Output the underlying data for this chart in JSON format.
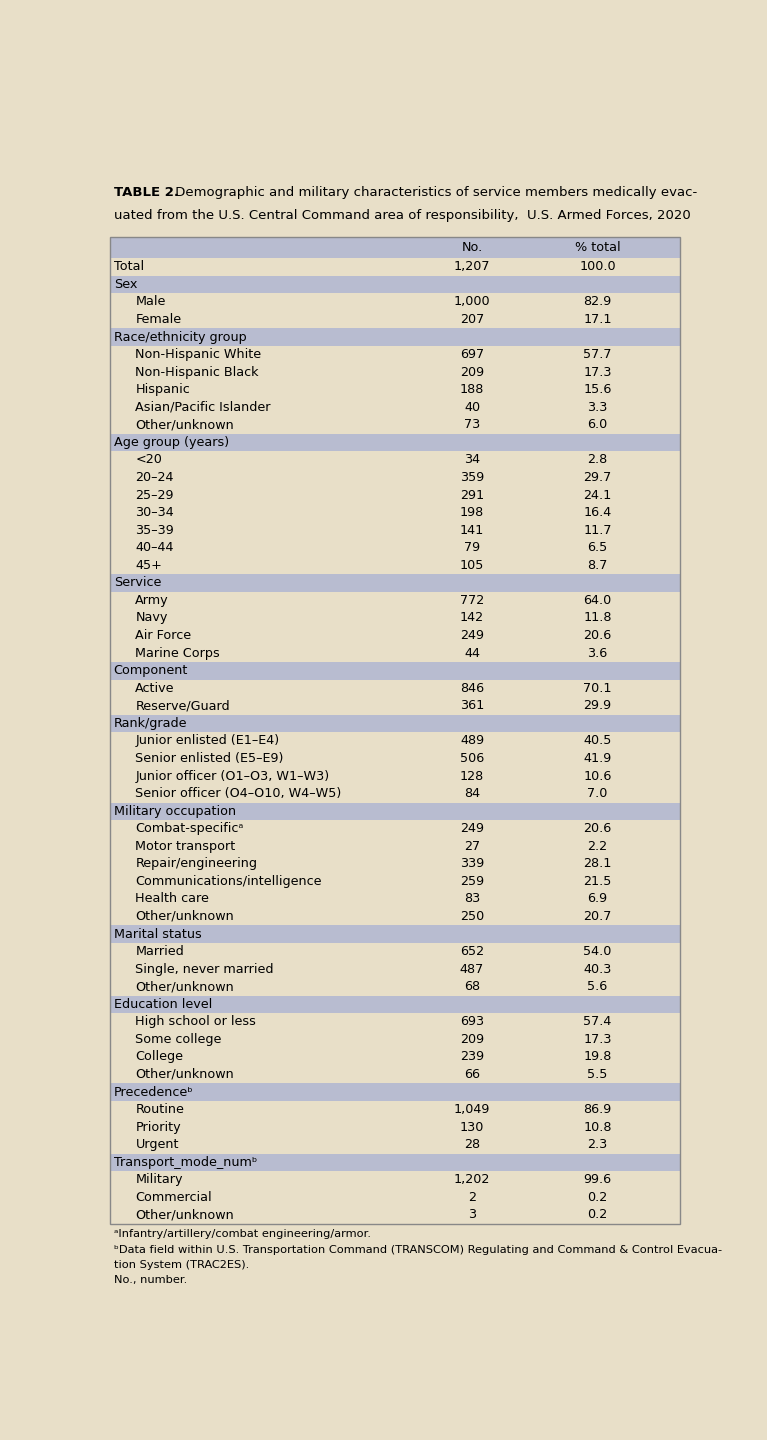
{
  "title_bold": "TABLE 2.",
  "title_line1_rest": " Demographic and military characteristics of service members medically evac-",
  "title_line2": "uated from the U.S. Central Command area of responsibility,  U.S. Armed Forces, 2020",
  "col_headers": [
    "",
    "No.",
    "% total"
  ],
  "bg_color": "#e8dfc8",
  "header_bg": "#b8bcd0",
  "section_bg": "#b8bcd0",
  "row_bg_light": "#e8dfc8",
  "rows": [
    {
      "label": "Total",
      "no": "1,207",
      "pct": "100.0",
      "type": "data",
      "indent": 0
    },
    {
      "label": "Sex",
      "no": "",
      "pct": "",
      "type": "section",
      "indent": 0
    },
    {
      "label": "Male",
      "no": "1,000",
      "pct": "82.9",
      "type": "data",
      "indent": 1
    },
    {
      "label": "Female",
      "no": "207",
      "pct": "17.1",
      "type": "data",
      "indent": 1
    },
    {
      "label": "Race/ethnicity group",
      "no": "",
      "pct": "",
      "type": "section",
      "indent": 0
    },
    {
      "label": "Non-Hispanic White",
      "no": "697",
      "pct": "57.7",
      "type": "data",
      "indent": 1
    },
    {
      "label": "Non-Hispanic Black",
      "no": "209",
      "pct": "17.3",
      "type": "data",
      "indent": 1
    },
    {
      "label": "Hispanic",
      "no": "188",
      "pct": "15.6",
      "type": "data",
      "indent": 1
    },
    {
      "label": "Asian/Pacific Islander",
      "no": "40",
      "pct": "3.3",
      "type": "data",
      "indent": 1
    },
    {
      "label": "Other/unknown",
      "no": "73",
      "pct": "6.0",
      "type": "data",
      "indent": 1
    },
    {
      "label": "Age group (years)",
      "no": "",
      "pct": "",
      "type": "section",
      "indent": 0
    },
    {
      "label": "<20",
      "no": "34",
      "pct": "2.8",
      "type": "data",
      "indent": 1
    },
    {
      "label": "20–24",
      "no": "359",
      "pct": "29.7",
      "type": "data",
      "indent": 1
    },
    {
      "label": "25–29",
      "no": "291",
      "pct": "24.1",
      "type": "data",
      "indent": 1
    },
    {
      "label": "30–34",
      "no": "198",
      "pct": "16.4",
      "type": "data",
      "indent": 1
    },
    {
      "label": "35–39",
      "no": "141",
      "pct": "11.7",
      "type": "data",
      "indent": 1
    },
    {
      "label": "40–44",
      "no": "79",
      "pct": "6.5",
      "type": "data",
      "indent": 1
    },
    {
      "label": "45+",
      "no": "105",
      "pct": "8.7",
      "type": "data",
      "indent": 1
    },
    {
      "label": "Service",
      "no": "",
      "pct": "",
      "type": "section",
      "indent": 0
    },
    {
      "label": "Army",
      "no": "772",
      "pct": "64.0",
      "type": "data",
      "indent": 1
    },
    {
      "label": "Navy",
      "no": "142",
      "pct": "11.8",
      "type": "data",
      "indent": 1
    },
    {
      "label": "Air Force",
      "no": "249",
      "pct": "20.6",
      "type": "data",
      "indent": 1
    },
    {
      "label": "Marine Corps",
      "no": "44",
      "pct": "3.6",
      "type": "data",
      "indent": 1
    },
    {
      "label": "Component",
      "no": "",
      "pct": "",
      "type": "section",
      "indent": 0
    },
    {
      "label": "Active",
      "no": "846",
      "pct": "70.1",
      "type": "data",
      "indent": 1
    },
    {
      "label": "Reserve/Guard",
      "no": "361",
      "pct": "29.9",
      "type": "data",
      "indent": 1
    },
    {
      "label": "Rank/grade",
      "no": "",
      "pct": "",
      "type": "section",
      "indent": 0
    },
    {
      "label": "Junior enlisted (E1–E4)",
      "no": "489",
      "pct": "40.5",
      "type": "data",
      "indent": 1
    },
    {
      "label": "Senior enlisted (E5–E9)",
      "no": "506",
      "pct": "41.9",
      "type": "data",
      "indent": 1
    },
    {
      "label": "Junior officer (O1–O3, W1–W3)",
      "no": "128",
      "pct": "10.6",
      "type": "data",
      "indent": 1
    },
    {
      "label": "Senior officer (O4–O10, W4–W5)",
      "no": "84",
      "pct": "7.0",
      "type": "data",
      "indent": 1
    },
    {
      "label": "Military occupation",
      "no": "",
      "pct": "",
      "type": "section",
      "indent": 0
    },
    {
      "label": "Combat-specificᵃ",
      "no": "249",
      "pct": "20.6",
      "type": "data",
      "indent": 1
    },
    {
      "label": "Motor transport",
      "no": "27",
      "pct": "2.2",
      "type": "data",
      "indent": 1
    },
    {
      "label": "Repair/engineering",
      "no": "339",
      "pct": "28.1",
      "type": "data",
      "indent": 1
    },
    {
      "label": "Communications/intelligence",
      "no": "259",
      "pct": "21.5",
      "type": "data",
      "indent": 1
    },
    {
      "label": "Health care",
      "no": "83",
      "pct": "6.9",
      "type": "data",
      "indent": 1
    },
    {
      "label": "Other/unknown",
      "no": "250",
      "pct": "20.7",
      "type": "data",
      "indent": 1
    },
    {
      "label": "Marital status",
      "no": "",
      "pct": "",
      "type": "section",
      "indent": 0
    },
    {
      "label": "Married",
      "no": "652",
      "pct": "54.0",
      "type": "data",
      "indent": 1
    },
    {
      "label": "Single, never married",
      "no": "487",
      "pct": "40.3",
      "type": "data",
      "indent": 1
    },
    {
      "label": "Other/unknown",
      "no": "68",
      "pct": "5.6",
      "type": "data",
      "indent": 1
    },
    {
      "label": "Education level",
      "no": "",
      "pct": "",
      "type": "section",
      "indent": 0
    },
    {
      "label": "High school or less",
      "no": "693",
      "pct": "57.4",
      "type": "data",
      "indent": 1
    },
    {
      "label": "Some college",
      "no": "209",
      "pct": "17.3",
      "type": "data",
      "indent": 1
    },
    {
      "label": "College",
      "no": "239",
      "pct": "19.8",
      "type": "data",
      "indent": 1
    },
    {
      "label": "Other/unknown",
      "no": "66",
      "pct": "5.5",
      "type": "data",
      "indent": 1
    },
    {
      "label": "Precedenceᵇ",
      "no": "",
      "pct": "",
      "type": "section",
      "indent": 0
    },
    {
      "label": "Routine",
      "no": "1,049",
      "pct": "86.9",
      "type": "data",
      "indent": 1
    },
    {
      "label": "Priority",
      "no": "130",
      "pct": "10.8",
      "type": "data",
      "indent": 1
    },
    {
      "label": "Urgent",
      "no": "28",
      "pct": "2.3",
      "type": "data",
      "indent": 1
    },
    {
      "label": "Transport_mode_numᵇ",
      "no": "",
      "pct": "",
      "type": "section",
      "indent": 0
    },
    {
      "label": "Military",
      "no": "1,202",
      "pct": "99.6",
      "type": "data",
      "indent": 1
    },
    {
      "label": "Commercial",
      "no": "2",
      "pct": "0.2",
      "type": "data",
      "indent": 1
    },
    {
      "label": "Other/unknown",
      "no": "3",
      "pct": "0.2",
      "type": "data",
      "indent": 1
    }
  ],
  "footnotes": [
    "ᵃInfantry/artillery/combat engineering/armor.",
    "ᵇData field within U.S. Transportation Command (TRANSCOM) Regulating and Command & Control Evacua-\n  tion System (TRAC2ES).",
    "No., number."
  ],
  "text_color": "#000000",
  "font_size_title": 9.5,
  "font_size_body": 9.2,
  "font_size_footnote": 8.2
}
